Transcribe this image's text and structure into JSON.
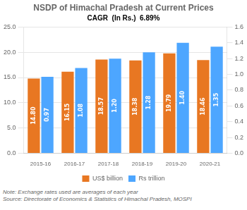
{
  "chart_data": {
    "type": "bar",
    "title": "NSDP of Himachal Pradesh at Current Prices",
    "categories": [
      "2015-16",
      "2016-17",
      "2017-18",
      "2018-19",
      "2019-20",
      "2020-21"
    ],
    "series": [
      {
        "name": "US$ billion",
        "color": "#E87722",
        "axis": "y",
        "values": [
          14.8,
          16.15,
          18.57,
          18.38,
          19.79,
          18.46
        ],
        "value_labels": [
          "14.80",
          "16.15",
          "18.57",
          "18.38",
          "19.79",
          "18.46"
        ]
      },
      {
        "name": "Rs trillion",
        "color": "#4DA6FF",
        "axis": "y2",
        "values": [
          0.97,
          1.08,
          1.2,
          1.28,
          1.4,
          1.35
        ],
        "value_labels": [
          "0.97",
          "1.08",
          "1.20",
          "1.28",
          "1.40",
          "1.35"
        ]
      }
    ],
    "ylim": [
      0,
      25.0
    ],
    "yticks": [
      {
        "value": 0,
        "label": "0.0"
      },
      {
        "value": 5,
        "label": "5.0"
      },
      {
        "value": 10,
        "label": "10.0"
      },
      {
        "value": 15,
        "label": "15.0"
      },
      {
        "value": 20,
        "label": "20.0"
      },
      {
        "value": 25,
        "label": "25.0"
      }
    ],
    "y2lim": [
      0.0,
      1.6
    ],
    "y2ticks": [
      {
        "value": 0,
        "label": "0.0"
      },
      0.2,
      0.4,
      0.6,
      0.8,
      {
        "value": 1,
        "label": "1.0"
      },
      1.2,
      1.4,
      1.6
    ],
    "annotations": [
      "CAGR  (In Rs.)  6.89%",
      "Note: Exchange rates used are averages of each year",
      "Source: Directorate of Economics & Statistics of Himachal Pradesh, MOSPI"
    ],
    "data_labels": true,
    "grid": true,
    "legend": "bottom"
  }
}
